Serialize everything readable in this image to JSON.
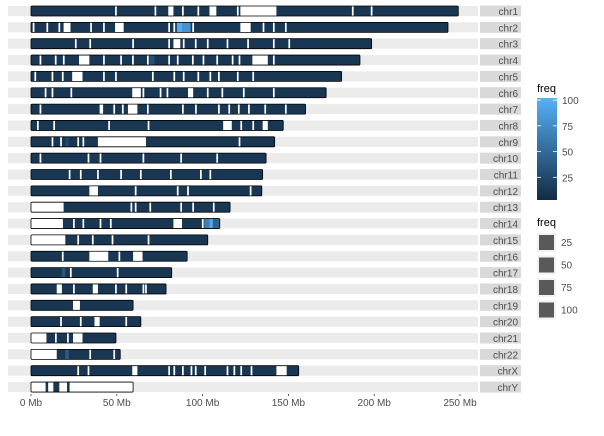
{
  "chart_data": {
    "type": "heatmap",
    "subtype": "karyotype-density",
    "x_unit": "Mb",
    "xlim": [
      0,
      250
    ],
    "x_ticks": [
      0,
      50,
      100,
      150,
      200,
      250
    ],
    "x_tick_labels": [
      "0 Mb",
      "50 Mb",
      "100 Mb",
      "150 Mb",
      "200 Mb",
      "250 Mb"
    ],
    "base_freq": 12,
    "low_color": "#132B43",
    "high_color": "#56B1F7",
    "color_range": [
      3,
      102
    ],
    "legend_color": {
      "title": "freq",
      "ticks": [
        "100",
        "75",
        "50",
        "25"
      ],
      "tick_values": [
        100,
        75,
        50,
        25
      ]
    },
    "legend_size": {
      "title": "freq",
      "labels": [
        "25",
        "50",
        "75",
        "100"
      ],
      "key_color": "#595959"
    },
    "chromosomes": [
      {
        "name": "chr1",
        "length": 249,
        "gaps": [
          [
            49,
            50
          ],
          [
            72,
            73
          ],
          [
            80,
            83
          ],
          [
            88,
            89
          ],
          [
            97,
            98
          ],
          [
            104,
            108
          ],
          [
            120,
            121
          ],
          [
            122,
            143
          ],
          [
            187,
            188
          ],
          [
            198,
            199
          ]
        ],
        "hot": []
      },
      {
        "name": "chr2",
        "length": 243,
        "gaps": [
          [
            1,
            2
          ],
          [
            9,
            10
          ],
          [
            16,
            17
          ],
          [
            19,
            23
          ],
          [
            34.5,
            35.5
          ],
          [
            42,
            43
          ],
          [
            49,
            54
          ],
          [
            80,
            81
          ],
          [
            83,
            84
          ],
          [
            94,
            95
          ],
          [
            122,
            128
          ],
          [
            135,
            136
          ],
          [
            141,
            142
          ],
          [
            148,
            149
          ]
        ],
        "hot": [
          [
            85,
            88,
            100
          ],
          [
            88,
            93,
            80
          ]
        ]
      },
      {
        "name": "chr3",
        "length": 198.5,
        "gaps": [
          [
            25.6,
            26.6
          ],
          [
            34,
            35
          ],
          [
            59,
            60
          ],
          [
            80,
            81
          ],
          [
            83,
            87
          ],
          [
            88.5,
            89.5
          ],
          [
            95.5,
            96.5
          ],
          [
            102.5,
            103.5
          ],
          [
            114,
            115
          ],
          [
            126,
            127
          ],
          [
            141,
            142
          ],
          [
            150,
            151
          ]
        ],
        "hot": []
      },
      {
        "name": "chr4",
        "length": 191.7,
        "gaps": [
          [
            5,
            6
          ],
          [
            13.9,
            14.9
          ],
          [
            18.6,
            19.6
          ],
          [
            28,
            34
          ],
          [
            42,
            43
          ],
          [
            52,
            53
          ],
          [
            58.9,
            59.9
          ],
          [
            67.6,
            68.6
          ],
          [
            80,
            81
          ],
          [
            85,
            86
          ],
          [
            93.8,
            94.8
          ],
          [
            100,
            101
          ],
          [
            108,
            109
          ],
          [
            117,
            118
          ],
          [
            121,
            122
          ],
          [
            129,
            138
          ],
          [
            141,
            142
          ]
        ],
        "hot": [
          [
            69,
            72,
            30
          ]
        ]
      },
      {
        "name": "chr5",
        "length": 181,
        "gaps": [
          [
            2,
            3
          ],
          [
            12,
            13
          ],
          [
            18,
            19
          ],
          [
            24,
            30
          ],
          [
            42,
            43
          ],
          [
            49,
            50
          ],
          [
            70.5,
            71.5
          ],
          [
            83,
            84
          ],
          [
            88.5,
            89.5
          ],
          [
            97,
            98
          ],
          [
            104,
            105
          ],
          [
            109,
            110
          ],
          [
            120,
            121
          ],
          [
            129,
            130
          ]
        ],
        "hot": []
      },
      {
        "name": "chr6",
        "length": 172,
        "gaps": [
          [
            8,
            9
          ],
          [
            12,
            13
          ],
          [
            23,
            24
          ],
          [
            59,
            64
          ],
          [
            65,
            66
          ],
          [
            75,
            76
          ],
          [
            79,
            80
          ],
          [
            91.5,
            94.5
          ],
          [
            102.5,
            103.5
          ],
          [
            111,
            112
          ],
          [
            123.5,
            124.5
          ],
          [
            141,
            142
          ]
        ],
        "hot": []
      },
      {
        "name": "chr7",
        "length": 160,
        "gaps": [
          [
            5,
            6
          ],
          [
            40,
            42
          ],
          [
            48,
            49
          ],
          [
            53,
            54
          ],
          [
            56.5,
            62
          ],
          [
            67.6,
            68.6
          ],
          [
            88,
            89
          ],
          [
            95.6,
            96.6
          ],
          [
            109,
            110
          ],
          [
            115,
            116
          ],
          [
            120.6,
            121.6
          ],
          [
            126.5,
            127.5
          ],
          [
            136,
            137
          ],
          [
            148,
            149
          ]
        ],
        "hot": []
      },
      {
        "name": "chr8",
        "length": 147,
        "gaps": [
          [
            3.5,
            4.5
          ],
          [
            13,
            14
          ],
          [
            45,
            46
          ],
          [
            68,
            69
          ],
          [
            112,
            117
          ],
          [
            122,
            123
          ],
          [
            129,
            130
          ],
          [
            135,
            138
          ]
        ],
        "hot": []
      },
      {
        "name": "chr9",
        "length": 142,
        "gaps": [
          [
            12,
            13
          ],
          [
            17,
            18
          ],
          [
            27,
            28
          ],
          [
            30,
            31
          ],
          [
            39,
            67
          ],
          [
            121,
            122
          ]
        ],
        "hot": [
          [
            20,
            22,
            25
          ]
        ]
      },
      {
        "name": "chr10",
        "length": 137,
        "gaps": [
          [
            5,
            6
          ],
          [
            33,
            34
          ],
          [
            40,
            41
          ],
          [
            65,
            66
          ],
          [
            87,
            88
          ],
          [
            108,
            109
          ]
        ],
        "hot": []
      },
      {
        "name": "chr11",
        "length": 135,
        "gaps": [
          [
            22,
            23
          ],
          [
            28.5,
            29.5
          ],
          [
            38.5,
            39.5
          ],
          [
            52,
            53
          ],
          [
            63.5,
            64.5
          ],
          [
            81,
            82
          ],
          [
            98.5,
            99.5
          ],
          [
            104,
            105
          ]
        ],
        "hot": []
      },
      {
        "name": "chr12",
        "length": 134.5,
        "gaps": [
          [
            34,
            39
          ],
          [
            60.5,
            61.5
          ],
          [
            85,
            86
          ],
          [
            91,
            92
          ],
          [
            127.5,
            128.5
          ]
        ],
        "hot": []
      },
      {
        "name": "chr13",
        "length": 116,
        "gaps": [
          [
            0,
            19
          ],
          [
            58,
            59
          ],
          [
            60.5,
            61.5
          ],
          [
            69,
            70
          ],
          [
            87,
            88
          ],
          [
            94,
            95
          ],
          [
            106,
            107
          ]
        ],
        "hot": []
      },
      {
        "name": "chr14",
        "length": 110,
        "gaps": [
          [
            0,
            18.6
          ],
          [
            24.5,
            25.5
          ],
          [
            30,
            31
          ],
          [
            40,
            41
          ],
          [
            46,
            47
          ],
          [
            83,
            88
          ],
          [
            99.6,
            100.6
          ]
        ],
        "hot": [
          [
            101,
            104,
            65
          ],
          [
            104,
            106,
            95
          ],
          [
            106,
            110,
            45
          ]
        ]
      },
      {
        "name": "chr15",
        "length": 103,
        "gaps": [
          [
            0,
            20
          ],
          [
            27,
            28
          ],
          [
            35.5,
            36.5
          ],
          [
            47,
            48
          ],
          [
            68,
            69
          ]
        ],
        "hot": []
      },
      {
        "name": "chr16",
        "length": 91,
        "gaps": [
          [
            18,
            19
          ],
          [
            34,
            45
          ],
          [
            51,
            52
          ],
          [
            59.5,
            65
          ]
        ],
        "hot": []
      },
      {
        "name": "chr17",
        "length": 82,
        "gaps": [
          [
            22.7,
            23.7
          ],
          [
            50,
            51
          ]
        ],
        "hot": [
          [
            18,
            20,
            35
          ]
        ]
      },
      {
        "name": "chr18",
        "length": 78.7,
        "gaps": [
          [
            15,
            18
          ],
          [
            24.5,
            25.5
          ],
          [
            36,
            39
          ],
          [
            49,
            50
          ],
          [
            55,
            56
          ],
          [
            65,
            66
          ],
          [
            66.5,
            67.5
          ]
        ],
        "hot": []
      },
      {
        "name": "chr19",
        "length": 59.5,
        "gaps": [
          [
            24.5,
            28.5
          ]
        ],
        "hot": []
      },
      {
        "name": "chr20",
        "length": 64,
        "gaps": [
          [
            17,
            18
          ],
          [
            28.5,
            29.5
          ],
          [
            37,
            40
          ],
          [
            55,
            56
          ]
        ],
        "hot": []
      },
      {
        "name": "chr21",
        "length": 49.5,
        "gaps": [
          [
            0,
            9
          ],
          [
            14,
            15
          ],
          [
            21,
            22
          ],
          [
            24.5,
            30
          ]
        ],
        "hot": []
      },
      {
        "name": "chr22",
        "length": 52,
        "gaps": [
          [
            0,
            15
          ],
          [
            34,
            35
          ],
          [
            48,
            49
          ]
        ],
        "hot": [
          [
            20,
            22,
            40
          ]
        ]
      },
      {
        "name": "chrX",
        "length": 156,
        "gaps": [
          [
            27,
            28
          ],
          [
            33,
            34
          ],
          [
            59,
            62
          ],
          [
            80,
            81
          ],
          [
            83,
            84
          ],
          [
            88,
            89
          ],
          [
            93,
            94
          ],
          [
            95.5,
            96.5
          ],
          [
            101,
            102
          ],
          [
            114,
            115
          ],
          [
            118,
            119
          ],
          [
            122,
            123
          ],
          [
            128,
            129
          ],
          [
            143,
            149
          ]
        ],
        "hot": []
      },
      {
        "name": "chrY",
        "length": 59.5,
        "gaps": [
          [
            0,
            8.5
          ],
          [
            10,
            13
          ],
          [
            16.5,
            21
          ],
          [
            22.5,
            59.5
          ]
        ],
        "hot": []
      }
    ]
  }
}
